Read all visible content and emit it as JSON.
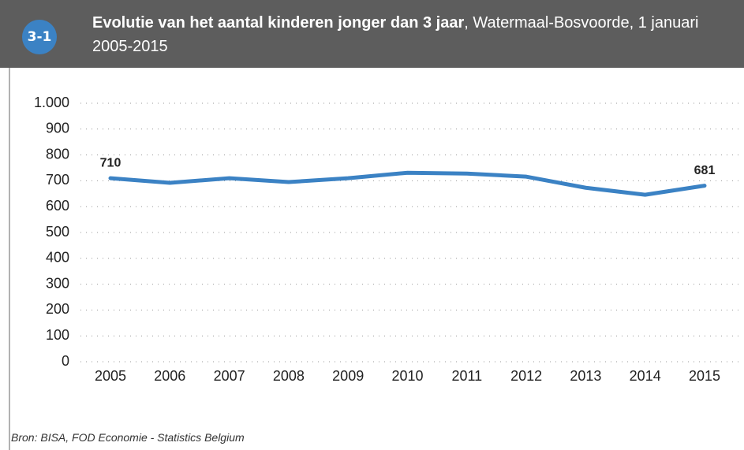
{
  "chart_data": {
    "type": "line",
    "figure_number": "3-1",
    "title": "Evolutie van het aantal kinderen jonger dan 3 jaar",
    "subtitle": ", Watermaal-Bosvoorde, 1 januari 2005-2015",
    "categories": [
      "2005",
      "2006",
      "2007",
      "2008",
      "2009",
      "2010",
      "2011",
      "2012",
      "2013",
      "2014",
      "2015"
    ],
    "series": [
      {
        "name": "Kinderen jonger dan 3 jaar",
        "color": "#3b82c4",
        "values": [
          710,
          692,
          710,
          695,
          710,
          731,
          728,
          716,
          673,
          646,
          681
        ],
        "value_labels": [
          "710",
          null,
          null,
          null,
          null,
          null,
          null,
          null,
          null,
          null,
          "681"
        ]
      }
    ],
    "ylim": [
      0,
      1000
    ],
    "yticks": [
      0,
      100,
      200,
      300,
      400,
      500,
      600,
      700,
      800,
      900,
      {
        "value": 1000,
        "label": "1.000"
      }
    ],
    "grid": true,
    "source": "Bron: BISA, FOD Economie - Statistics Belgium"
  }
}
